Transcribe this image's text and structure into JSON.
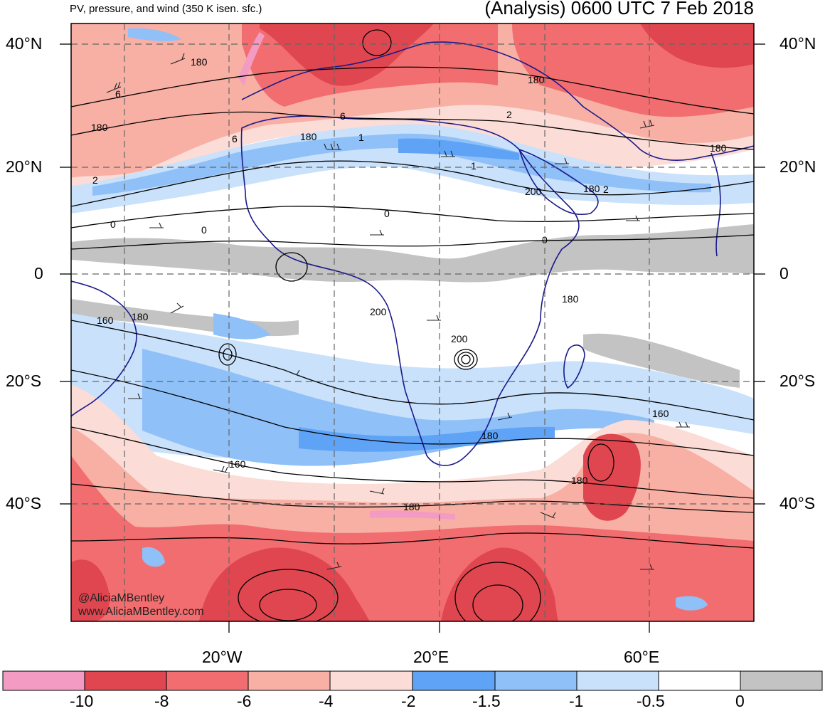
{
  "header": {
    "subtitle": "PV, pressure, and wind (350 K isen. sfc.)",
    "title": "(Analysis) 0600 UTC 7 Feb 2018"
  },
  "axes": {
    "lat_left": [
      "40°N",
      "20°N",
      "0",
      "20°S",
      "40°S"
    ],
    "lat_right": [
      "40°N",
      "20°N",
      "0",
      "20°S",
      "40°S"
    ],
    "lon_bottom": [
      "20°W",
      "20°E",
      "60°E"
    ]
  },
  "contours": {
    "pressure_labels": [
      "180",
      "180",
      "180",
      "180",
      "180",
      "180",
      "200",
      "200",
      "200",
      "180",
      "160",
      "180",
      "160",
      "180",
      "160",
      "180",
      "180"
    ],
    "pv_labels": [
      "6",
      "6",
      "6",
      "2",
      "2",
      "1",
      "1",
      "0",
      "0",
      "0",
      "2",
      "0"
    ]
  },
  "credit": {
    "handle": "@AliciaMBentley",
    "site": "www.AliciaMBentley.com"
  },
  "colorbar": {
    "colors": [
      "#f49bc4",
      "#e0464f",
      "#f26d6f",
      "#f8afa4",
      "#fbdcd6",
      "#5ea3f5",
      "#8fc0f8",
      "#c9e1fb",
      "#ffffff",
      "#c3c3c3"
    ],
    "labels": [
      "-10",
      "-8",
      "-6",
      "-4",
      "-2",
      "-1.5",
      "-1",
      "-0.5",
      "0"
    ]
  }
}
